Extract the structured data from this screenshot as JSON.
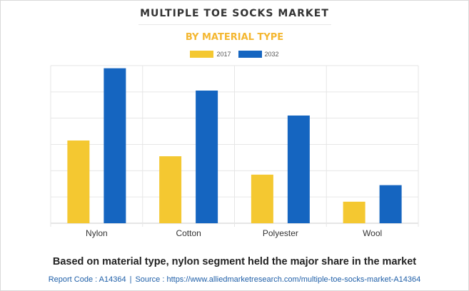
{
  "chart_data": {
    "type": "bar",
    "title": "MULTIPLE TOE SOCKS MARKET",
    "subtitle": "BY MATERIAL TYPE",
    "categories": [
      "Nylon",
      "Cotton",
      "Polyester",
      "Wool"
    ],
    "series": [
      {
        "name": "2017",
        "color": "#f4c831",
        "values": [
          3.15,
          2.55,
          1.85,
          0.82
        ]
      },
      {
        "name": "2032",
        "color": "#1565c0",
        "values": [
          5.9,
          5.05,
          4.1,
          1.45
        ]
      }
    ],
    "ylim": [
      0,
      6
    ],
    "grid": true,
    "legend_position": "top-center",
    "xlabel": "",
    "ylabel": ""
  },
  "caption": "Based on material type, nylon segment held the major share in the market",
  "footer": {
    "report_code": "Report Code : A14364",
    "separator": "|",
    "source": "Source : https://www.alliedmarketresearch.com/multiple-toe-socks-market-A14364"
  }
}
